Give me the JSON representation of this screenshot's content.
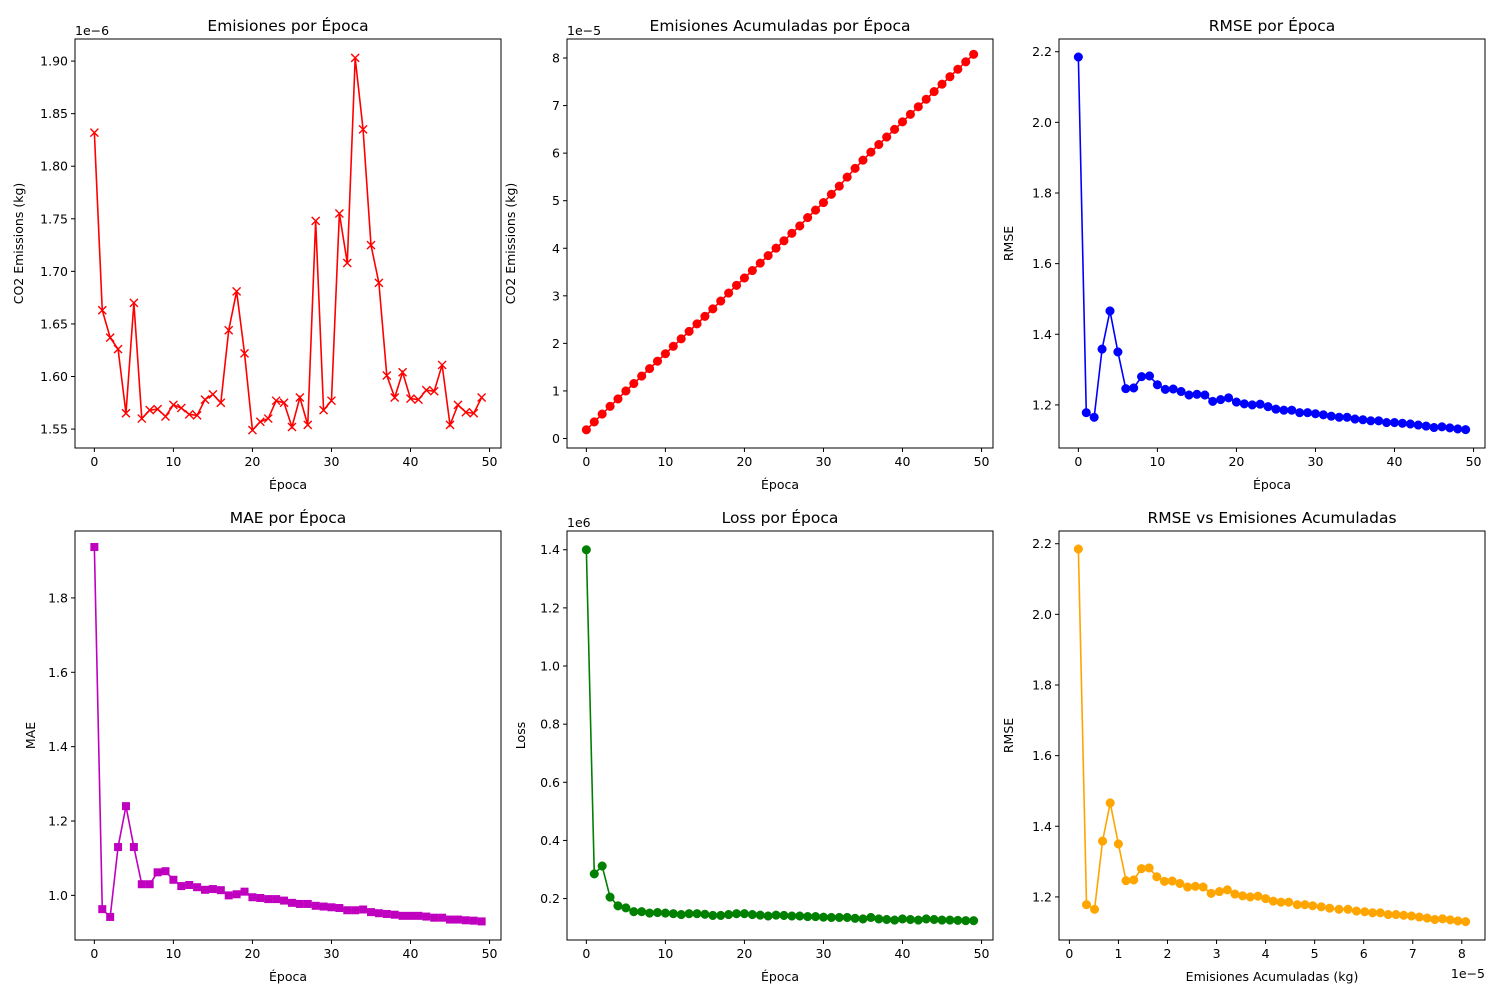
{
  "chart_data": [
    {
      "type": "line",
      "title": "Emisiones por Época",
      "xlabel": "Época",
      "ylabel": "CO2 Emissions (kg)",
      "offset_text": "1e−6",
      "xlim": [
        -2.45,
        51.45
      ],
      "ylim": [
        1.532,
        1.921
      ],
      "xticks": [
        0,
        10,
        20,
        30,
        40,
        50
      ],
      "xtick_labels": [
        "0",
        "10",
        "20",
        "30",
        "40",
        "50"
      ],
      "yticks": [
        1.55,
        1.6,
        1.65,
        1.7,
        1.75,
        1.8,
        1.85,
        1.9
      ],
      "ytick_labels": [
        "1.55",
        "1.60",
        "1.65",
        "1.70",
        "1.75",
        "1.80",
        "1.85",
        "1.90"
      ],
      "marker": "x",
      "color": "#ff0000",
      "series": [
        {
          "x": [
            0,
            1,
            2,
            3,
            4,
            5,
            6,
            7,
            8,
            9,
            10,
            11,
            12,
            13,
            14,
            15,
            16,
            17,
            18,
            19,
            20,
            21,
            22,
            23,
            24,
            25,
            26,
            27,
            28,
            29,
            30,
            31,
            32,
            33,
            34,
            35,
            36,
            37,
            38,
            39,
            40,
            41,
            42,
            43,
            44,
            45,
            46,
            47,
            48,
            49
          ],
          "values": [
            1.832,
            1.663,
            1.637,
            1.626,
            1.565,
            1.67,
            1.56,
            1.568,
            1.569,
            1.562,
            1.573,
            1.57,
            1.564,
            1.563,
            1.578,
            1.583,
            1.575,
            1.644,
            1.681,
            1.622,
            1.549,
            1.557,
            1.56,
            1.577,
            1.575,
            1.552,
            1.58,
            1.554,
            1.748,
            1.568,
            1.577,
            1.755,
            1.708,
            1.903,
            1.835,
            1.725,
            1.689,
            1.601,
            1.58,
            1.604,
            1.579,
            1.578,
            1.587,
            1.586,
            1.611,
            1.554,
            1.573,
            1.566,
            1.565,
            1.58
          ]
        }
      ]
    },
    {
      "type": "line",
      "title": "Emisiones Acumuladas por Época",
      "xlabel": "Época",
      "ylabel": "CO2 Emissions (kg)",
      "offset_text": "1e−5",
      "xlim": [
        -2.45,
        51.45
      ],
      "ylim": [
        -0.2,
        8.4
      ],
      "xticks": [
        0,
        10,
        20,
        30,
        40,
        50
      ],
      "xtick_labels": [
        "0",
        "10",
        "20",
        "30",
        "40",
        "50"
      ],
      "yticks": [
        0,
        1,
        2,
        3,
        4,
        5,
        6,
        7,
        8
      ],
      "ytick_labels": [
        "0",
        "1",
        "2",
        "3",
        "4",
        "5",
        "6",
        "7",
        "8"
      ],
      "marker": "o",
      "color": "#ff0000",
      "series": [
        {
          "x": [
            0,
            1,
            2,
            3,
            4,
            5,
            6,
            7,
            8,
            9,
            10,
            11,
            12,
            13,
            14,
            15,
            16,
            17,
            18,
            19,
            20,
            21,
            22,
            23,
            24,
            25,
            26,
            27,
            28,
            29,
            30,
            31,
            32,
            33,
            34,
            35,
            36,
            37,
            38,
            39,
            40,
            41,
            42,
            43,
            44,
            45,
            46,
            47,
            48,
            49
          ],
          "values": [
            0.183,
            0.349,
            0.513,
            0.676,
            0.832,
            0.999,
            1.155,
            1.312,
            1.469,
            1.625,
            1.782,
            1.939,
            2.096,
            2.252,
            2.41,
            2.568,
            2.726,
            2.89,
            3.058,
            3.22,
            3.375,
            3.531,
            3.687,
            3.845,
            4.002,
            4.157,
            4.315,
            4.47,
            4.645,
            4.802,
            4.96,
            5.135,
            5.306,
            5.496,
            5.68,
            5.852,
            6.021,
            6.181,
            6.339,
            6.5,
            6.658,
            6.816,
            6.975,
            7.133,
            7.294,
            7.45,
            7.607,
            7.764,
            7.92,
            8.078
          ]
        }
      ]
    },
    {
      "type": "line",
      "title": "RMSE por Época",
      "xlabel": "Época",
      "ylabel": "RMSE",
      "offset_text": "",
      "xlim": [
        -2.45,
        51.45
      ],
      "ylim": [
        1.078,
        2.236
      ],
      "xticks": [
        0,
        10,
        20,
        30,
        40,
        50
      ],
      "xtick_labels": [
        "0",
        "10",
        "20",
        "30",
        "40",
        "50"
      ],
      "yticks": [
        1.2,
        1.4,
        1.6,
        1.8,
        2.0,
        2.2
      ],
      "ytick_labels": [
        "1.2",
        "1.4",
        "1.6",
        "1.8",
        "2.0",
        "2.2"
      ],
      "marker": "o",
      "color": "#0000ff",
      "series": [
        {
          "x": [
            0,
            1,
            2,
            3,
            4,
            5,
            6,
            7,
            8,
            9,
            10,
            11,
            12,
            13,
            14,
            15,
            16,
            17,
            18,
            19,
            20,
            21,
            22,
            23,
            24,
            25,
            26,
            27,
            28,
            29,
            30,
            31,
            32,
            33,
            34,
            35,
            36,
            37,
            38,
            39,
            40,
            41,
            42,
            43,
            44,
            45,
            46,
            47,
            48,
            49
          ],
          "values": [
            2.185,
            1.178,
            1.165,
            1.358,
            1.466,
            1.35,
            1.246,
            1.248,
            1.28,
            1.282,
            1.257,
            1.244,
            1.245,
            1.238,
            1.228,
            1.23,
            1.228,
            1.21,
            1.215,
            1.22,
            1.208,
            1.203,
            1.2,
            1.202,
            1.195,
            1.188,
            1.185,
            1.185,
            1.178,
            1.178,
            1.175,
            1.172,
            1.168,
            1.165,
            1.165,
            1.16,
            1.158,
            1.155,
            1.155,
            1.15,
            1.15,
            1.148,
            1.146,
            1.143,
            1.14,
            1.136,
            1.138,
            1.135,
            1.132,
            1.13
          ]
        }
      ]
    },
    {
      "type": "line",
      "title": "MAE por Época",
      "xlabel": "Época",
      "ylabel": "MAE",
      "offset_text": "",
      "xlim": [
        -2.45,
        51.45
      ],
      "ylim": [
        0.88,
        1.98
      ],
      "xticks": [
        0,
        10,
        20,
        30,
        40,
        50
      ],
      "xtick_labels": [
        "0",
        "10",
        "20",
        "30",
        "40",
        "50"
      ],
      "yticks": [
        1.0,
        1.2,
        1.4,
        1.6,
        1.8
      ],
      "ytick_labels": [
        "1.0",
        "1.2",
        "1.4",
        "1.6",
        "1.8"
      ],
      "marker": "s",
      "color": "#bf00bf",
      "series": [
        {
          "x": [
            0,
            1,
            2,
            3,
            4,
            5,
            6,
            7,
            8,
            9,
            10,
            11,
            12,
            13,
            14,
            15,
            16,
            17,
            18,
            19,
            20,
            21,
            22,
            23,
            24,
            25,
            26,
            27,
            28,
            29,
            30,
            31,
            32,
            33,
            34,
            35,
            36,
            37,
            38,
            39,
            40,
            41,
            42,
            43,
            44,
            45,
            46,
            47,
            48,
            49
          ],
          "values": [
            1.937,
            0.963,
            0.942,
            1.13,
            1.24,
            1.13,
            1.03,
            1.03,
            1.062,
            1.065,
            1.042,
            1.025,
            1.028,
            1.022,
            1.015,
            1.017,
            1.014,
            1.0,
            1.003,
            1.01,
            0.995,
            0.993,
            0.99,
            0.99,
            0.986,
            0.98,
            0.977,
            0.977,
            0.972,
            0.97,
            0.968,
            0.966,
            0.96,
            0.96,
            0.962,
            0.955,
            0.952,
            0.95,
            0.948,
            0.945,
            0.945,
            0.945,
            0.943,
            0.94,
            0.94,
            0.935,
            0.935,
            0.933,
            0.932,
            0.93
          ]
        }
      ]
    },
    {
      "type": "line",
      "title": "Loss por Época",
      "xlabel": "Época",
      "ylabel": "Loss",
      "offset_text": "1e6",
      "xlim": [
        -2.45,
        51.45
      ],
      "ylim": [
        0.0575,
        1.4645
      ],
      "xticks": [
        0,
        10,
        20,
        30,
        40,
        50
      ],
      "xtick_labels": [
        "0",
        "10",
        "20",
        "30",
        "40",
        "50"
      ],
      "yticks": [
        0.2,
        0.4,
        0.6,
        0.8,
        1.0,
        1.2,
        1.4
      ],
      "ytick_labels": [
        "0.2",
        "0.4",
        "0.6",
        "0.8",
        "1.0",
        "1.2",
        "1.4"
      ],
      "marker": "o",
      "color": "#008000",
      "series": [
        {
          "x": [
            0,
            1,
            2,
            3,
            4,
            5,
            6,
            7,
            8,
            9,
            10,
            11,
            12,
            13,
            14,
            15,
            16,
            17,
            18,
            19,
            20,
            21,
            22,
            23,
            24,
            25,
            26,
            27,
            28,
            29,
            30,
            31,
            32,
            33,
            34,
            35,
            36,
            37,
            38,
            39,
            40,
            41,
            42,
            43,
            44,
            45,
            46,
            47,
            48,
            49
          ],
          "values": [
            1.4,
            0.285,
            0.312,
            0.205,
            0.175,
            0.168,
            0.155,
            0.155,
            0.15,
            0.152,
            0.15,
            0.148,
            0.145,
            0.148,
            0.148,
            0.146,
            0.142,
            0.142,
            0.145,
            0.148,
            0.148,
            0.145,
            0.143,
            0.14,
            0.143,
            0.142,
            0.14,
            0.14,
            0.138,
            0.138,
            0.136,
            0.135,
            0.135,
            0.135,
            0.132,
            0.13,
            0.135,
            0.13,
            0.128,
            0.126,
            0.13,
            0.128,
            0.126,
            0.13,
            0.128,
            0.126,
            0.126,
            0.125,
            0.124,
            0.124
          ]
        }
      ]
    },
    {
      "type": "line",
      "title": "RMSE vs Emisiones Acumuladas",
      "xlabel": "Emisiones Acumuladas (kg)",
      "ylabel": "RMSE",
      "offset_text": "",
      "x_offset_text": "1e−5",
      "xlim": [
        -0.212,
        8.473
      ],
      "ylim": [
        1.078,
        2.236
      ],
      "xticks": [
        0,
        1,
        2,
        3,
        4,
        5,
        6,
        7,
        8
      ],
      "xtick_labels": [
        "0",
        "1",
        "2",
        "3",
        "4",
        "5",
        "6",
        "7",
        "8"
      ],
      "yticks": [
        1.2,
        1.4,
        1.6,
        1.8,
        2.0,
        2.2
      ],
      "ytick_labels": [
        "1.2",
        "1.4",
        "1.6",
        "1.8",
        "2.0",
        "2.2"
      ],
      "marker": "o",
      "color": "#ffa500",
      "series": [
        {
          "x": [
            0.183,
            0.349,
            0.513,
            0.676,
            0.832,
            0.999,
            1.155,
            1.312,
            1.469,
            1.625,
            1.782,
            1.939,
            2.096,
            2.252,
            2.41,
            2.568,
            2.726,
            2.89,
            3.058,
            3.22,
            3.375,
            3.531,
            3.687,
            3.845,
            4.002,
            4.157,
            4.315,
            4.47,
            4.645,
            4.802,
            4.96,
            5.135,
            5.306,
            5.496,
            5.68,
            5.852,
            6.021,
            6.181,
            6.339,
            6.5,
            6.658,
            6.816,
            6.975,
            7.133,
            7.294,
            7.45,
            7.607,
            7.764,
            7.92,
            8.078
          ],
          "values": [
            2.185,
            1.178,
            1.165,
            1.358,
            1.466,
            1.35,
            1.246,
            1.248,
            1.28,
            1.282,
            1.257,
            1.244,
            1.245,
            1.238,
            1.228,
            1.23,
            1.228,
            1.21,
            1.215,
            1.22,
            1.208,
            1.203,
            1.2,
            1.202,
            1.195,
            1.188,
            1.185,
            1.185,
            1.178,
            1.178,
            1.175,
            1.172,
            1.168,
            1.165,
            1.165,
            1.16,
            1.158,
            1.155,
            1.155,
            1.15,
            1.15,
            1.148,
            1.146,
            1.143,
            1.14,
            1.136,
            1.138,
            1.135,
            1.132,
            1.13
          ]
        }
      ]
    }
  ]
}
